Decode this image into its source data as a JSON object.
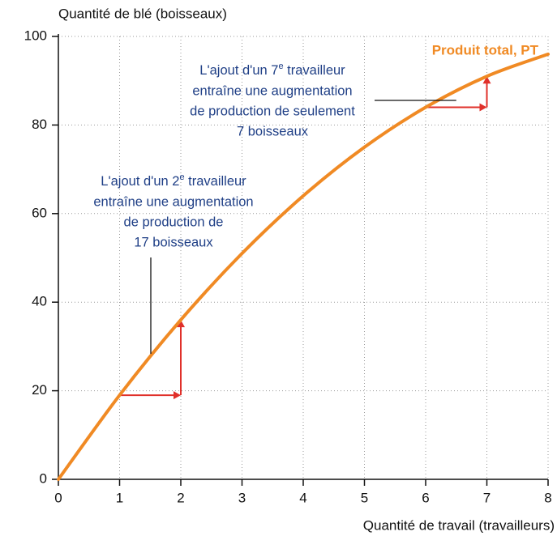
{
  "chart_data": {
    "type": "line",
    "title": "Quantité de blé (boisseaux)",
    "x_label": "Quantité de travail (travailleurs)",
    "x": [
      0,
      1,
      2,
      3,
      4,
      5,
      6,
      7,
      8
    ],
    "series": [
      {
        "name": "Produit total, PT",
        "color": "#f08a24",
        "values": [
          0,
          19,
          36,
          51,
          64,
          75,
          84,
          91,
          96
        ]
      }
    ],
    "xlim": [
      0,
      8
    ],
    "xticks": [
      0,
      1,
      2,
      3,
      4,
      5,
      6,
      7,
      8
    ],
    "ylim": [
      0,
      100
    ],
    "yticks": [
      0,
      20,
      40,
      60,
      80,
      100
    ],
    "grid": true,
    "annotations": [
      {
        "first": [
          "L'ajout d'un 7",
          "e",
          " travailleur"
        ],
        "lines": [
          "entraîne une augmentation",
          "de production de seulement",
          "7 boisseaux"
        ]
      },
      {
        "first": [
          "L'ajout d'un 2",
          "e",
          " travailleur"
        ],
        "lines": [
          "entraîne une augmentation",
          "de production de",
          "17 boisseaux"
        ]
      }
    ]
  }
}
